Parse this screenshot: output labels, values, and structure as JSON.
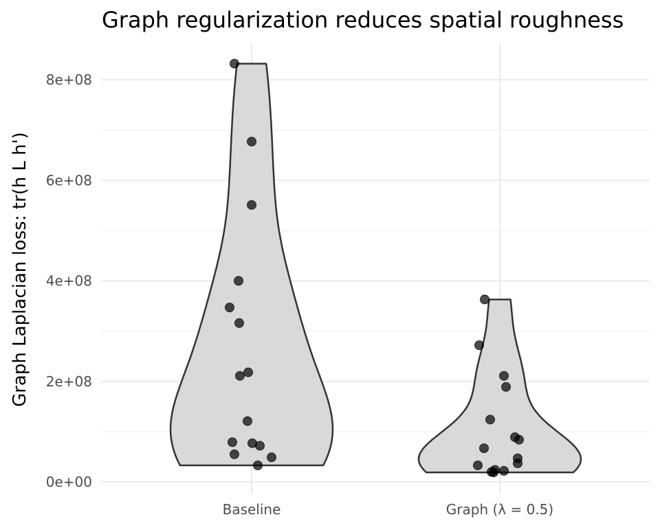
{
  "chart_data": {
    "type": "violin",
    "title": "Graph regularization reduces spatial roughness",
    "xlabel": "",
    "ylabel": "Graph Laplacian loss: tr(h L h')",
    "ylim": [
      -20000000,
      870000000
    ],
    "y_ticks": [
      0,
      200000000,
      400000000,
      600000000,
      800000000
    ],
    "y_tick_labels": [
      "0e+00",
      "2e+08",
      "4e+08",
      "6e+08",
      "8e+08"
    ],
    "categories": [
      "Baseline",
      "Graph (λ = 0.5)"
    ],
    "grid": true,
    "colors": {
      "violin_fill": "#d9d9d9",
      "violin_stroke": "#333333",
      "points": "#000000"
    },
    "series": [
      {
        "category": "Baseline",
        "values": [
          832000000,
          677000000,
          551000000,
          400000000,
          347000000,
          316000000,
          218000000,
          211000000,
          121000000,
          79000000,
          77000000,
          72000000,
          55000000,
          49000000,
          33000000
        ]
      },
      {
        "category": "Graph (λ = 0.5)",
        "values": [
          363000000,
          272000000,
          211000000,
          189000000,
          124000000,
          89000000,
          84000000,
          67000000,
          47000000,
          37000000,
          33000000,
          24000000,
          22000000,
          20000000,
          19000000
        ]
      }
    ]
  }
}
